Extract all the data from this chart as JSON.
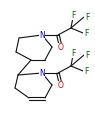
{
  "bg_color": "#ffffff",
  "line_color": "#111111",
  "line_width": 0.8,
  "font_size": 5.5,
  "N_color": "#0000cc",
  "O_color": "#cc0000",
  "F_color": "#006600"
}
